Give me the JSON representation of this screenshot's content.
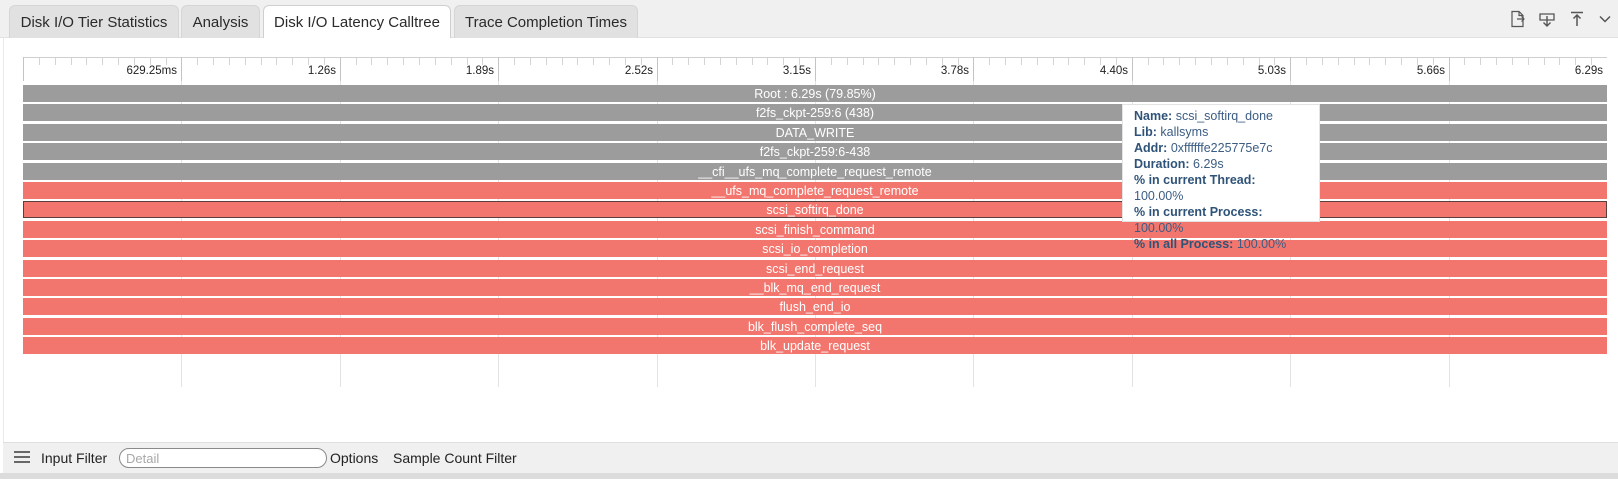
{
  "tabs": [
    {
      "label": "Disk I/O Tier Statistics",
      "active": false
    },
    {
      "label": "Analysis",
      "active": false
    },
    {
      "label": "Disk I/O Latency Calltree",
      "active": true
    },
    {
      "label": "Trace Completion Times",
      "active": false
    }
  ],
  "toolbar_icons": [
    "export-file-icon",
    "download-icon",
    "upload-icon",
    "chevron-down-icon"
  ],
  "timeline": {
    "ticks": [
      "629.25ms",
      "1.26s",
      "1.89s",
      "2.52s",
      "3.15s",
      "3.78s",
      "4.40s",
      "5.03s",
      "5.66s",
      "6.29s"
    ]
  },
  "calltree": {
    "rows": [
      {
        "label": "Root : 6.29s  (79.85%)",
        "kind": "gray"
      },
      {
        "label": "f2fs_ckpt-259:6 (438)",
        "kind": "gray"
      },
      {
        "label": "DATA_WRITE",
        "kind": "gray"
      },
      {
        "label": "f2fs_ckpt-259:6-438",
        "kind": "gray"
      },
      {
        "label": "__cfi__ufs_mq_complete_request_remote",
        "kind": "gray"
      },
      {
        "label": "__ufs_mq_complete_request_remote",
        "kind": "red"
      },
      {
        "label": "scsi_softirq_done",
        "kind": "red",
        "selected": true
      },
      {
        "label": "scsi_finish_command",
        "kind": "red"
      },
      {
        "label": "scsi_io_completion",
        "kind": "red"
      },
      {
        "label": "scsi_end_request",
        "kind": "red"
      },
      {
        "label": "__blk_mq_end_request",
        "kind": "red"
      },
      {
        "label": "flush_end_io",
        "kind": "red"
      },
      {
        "label": "blk_flush_complete_seq",
        "kind": "red"
      },
      {
        "label": "blk_update_request",
        "kind": "red"
      }
    ]
  },
  "tooltip": {
    "name_label": "Name:",
    "name_value": "scsi_softirq_done",
    "lib_label": "Lib:",
    "lib_value": "kallsyms",
    "addr_label": "Addr:",
    "addr_value": "0xffffffe225775e7c",
    "duration_label": "Duration:",
    "duration_value": "6.29s",
    "thread_label": "% in current Thread:",
    "thread_value": "100.00%",
    "process_label": "% in current Process:",
    "process_value": "100.00%",
    "all_label": "% in all Process:",
    "all_value": "100.00%"
  },
  "filter_bar": {
    "input_filter_label": "Input Filter",
    "detail_placeholder": "Detail",
    "options_label": "Options",
    "sample_count_label": "Sample Count Filter"
  },
  "colors": {
    "bar_gray": "#9c9c9c",
    "bar_red": "#f2766e",
    "tooltip_text": "#3b5d84"
  }
}
